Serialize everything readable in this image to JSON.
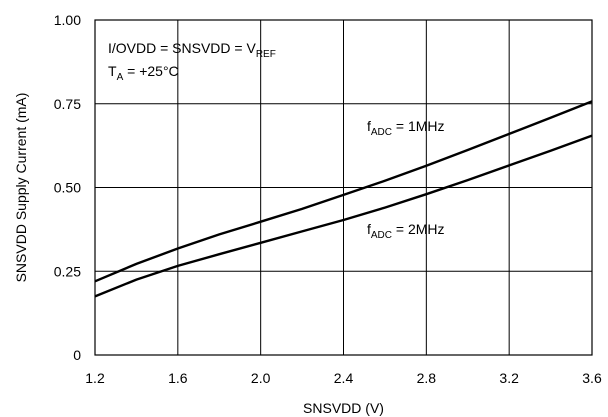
{
  "chart_data": {
    "type": "line",
    "xlabel": "SNSVDD (V)",
    "ylabel": "SNSVDD Supply Current (mA)",
    "xlim": [
      1.2,
      3.6
    ],
    "ylim": [
      0,
      1.0
    ],
    "xticks": [
      1.2,
      1.6,
      2.0,
      2.4,
      2.8,
      3.2,
      3.6
    ],
    "xtick_labels": [
      "1.2",
      "1.6",
      "2.0",
      "2.4",
      "2.8",
      "3.2",
      "3.6"
    ],
    "yticks": [
      0,
      0.25,
      0.5,
      0.75,
      1.0
    ],
    "ytick_labels": [
      "0",
      "0.25",
      "0.50",
      "0.75",
      "1.00"
    ],
    "grid": true,
    "legend": "none",
    "conditions": {
      "line1": {
        "main": "I/OVDD = SNSVDD = V",
        "sub": "REF"
      },
      "line2": {
        "pre": "T",
        "sub": "A",
        "post": " = +25°C"
      }
    },
    "series": [
      {
        "label_pre": "f",
        "label_sub": "ADC",
        "label_post": " = 1MHz",
        "x": [
          1.2,
          1.4,
          1.6,
          1.8,
          2.0,
          2.2,
          2.4,
          2.6,
          2.8,
          3.0,
          3.2,
          3.4,
          3.6
        ],
        "y": [
          0.22,
          0.272,
          0.318,
          0.36,
          0.398,
          0.436,
          0.478,
          0.52,
          0.565,
          0.612,
          0.66,
          0.708,
          0.757
        ]
      },
      {
        "label_pre": "f",
        "label_sub": "ADC",
        "label_post": " = 2MHz",
        "x": [
          1.2,
          1.4,
          1.6,
          1.8,
          2.0,
          2.2,
          2.4,
          2.6,
          2.8,
          3.0,
          3.2,
          3.4,
          3.6
        ],
        "y": [
          0.175,
          0.225,
          0.266,
          0.301,
          0.335,
          0.369,
          0.403,
          0.44,
          0.48,
          0.522,
          0.566,
          0.61,
          0.655
        ]
      }
    ]
  }
}
